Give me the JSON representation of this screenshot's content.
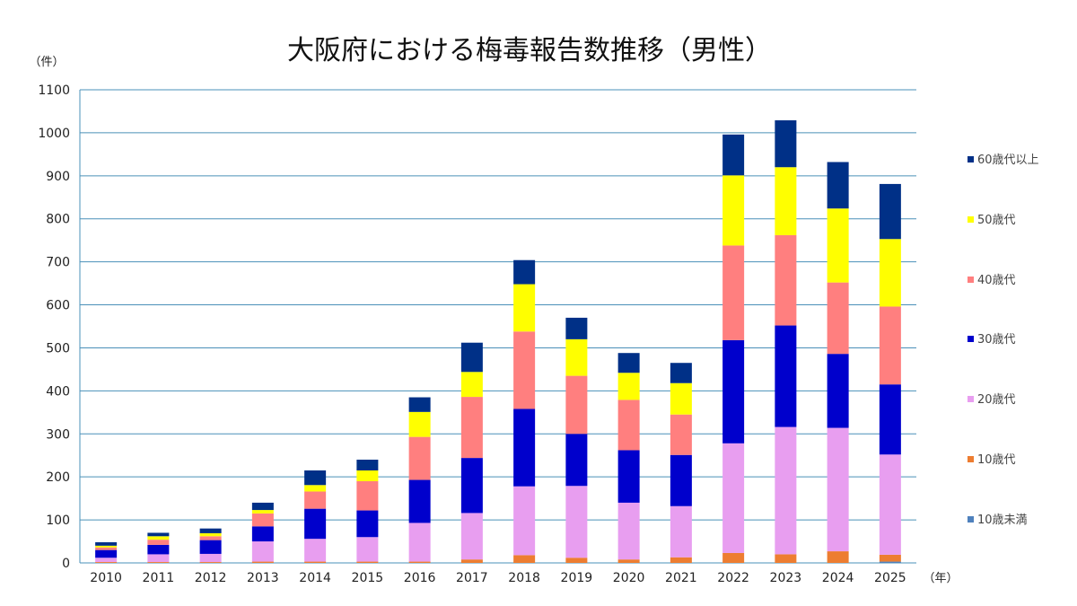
{
  "chart_data": {
    "type": "bar",
    "stacked": true,
    "title": "大阪府における梅毒報告数推移（男性）",
    "y_unit_label": "（件）",
    "x_unit_label": "（年）",
    "ylim": [
      0,
      1100
    ],
    "y_ticks": [
      0,
      100,
      200,
      300,
      400,
      500,
      600,
      700,
      800,
      900,
      1000,
      1100
    ],
    "grid": true,
    "legend_position": "right",
    "categories": [
      "2010",
      "2011",
      "2012",
      "2013",
      "2014",
      "2015",
      "2016",
      "2017",
      "2018",
      "2019",
      "2020",
      "2021",
      "2022",
      "2023",
      "2024",
      "2025"
    ],
    "series": [
      {
        "name": "10歳未満",
        "color": "#4f81bd",
        "values": [
          0,
          0,
          0,
          0,
          0,
          0,
          0,
          0,
          0,
          0,
          0,
          0,
          0,
          0,
          0,
          3
        ]
      },
      {
        "name": "10歳代",
        "color": "#ed7d31",
        "values": [
          2,
          2,
          2,
          3,
          3,
          3,
          3,
          8,
          18,
          12,
          8,
          13,
          23,
          20,
          27,
          16
        ]
      },
      {
        "name": "20歳代",
        "color": "#e89ef0",
        "values": [
          10,
          18,
          19,
          47,
          53,
          57,
          90,
          108,
          160,
          167,
          132,
          119,
          255,
          296,
          287,
          233
        ]
      },
      {
        "name": "30歳代",
        "color": "#0000cc",
        "values": [
          18,
          22,
          32,
          35,
          70,
          62,
          100,
          128,
          180,
          121,
          122,
          119,
          240,
          236,
          172,
          163
        ]
      },
      {
        "name": "40歳代",
        "color": "#ff7f7f",
        "values": [
          6,
          12,
          9,
          30,
          40,
          68,
          100,
          142,
          180,
          135,
          117,
          94,
          220,
          210,
          166,
          181
        ]
      },
      {
        "name": "50歳代",
        "color": "#ffff00",
        "values": [
          4,
          8,
          7,
          8,
          15,
          25,
          58,
          58,
          110,
          85,
          63,
          73,
          163,
          158,
          172,
          157
        ]
      },
      {
        "name": "60歳代以上",
        "color": "#003087",
        "values": [
          8,
          8,
          11,
          17,
          34,
          25,
          34,
          68,
          56,
          50,
          46,
          47,
          95,
          109,
          108,
          128
        ]
      }
    ],
    "totals": [
      48,
      70,
      80,
      140,
      215,
      240,
      385,
      512,
      704,
      570,
      488,
      465,
      996,
      1029,
      932,
      881
    ]
  }
}
